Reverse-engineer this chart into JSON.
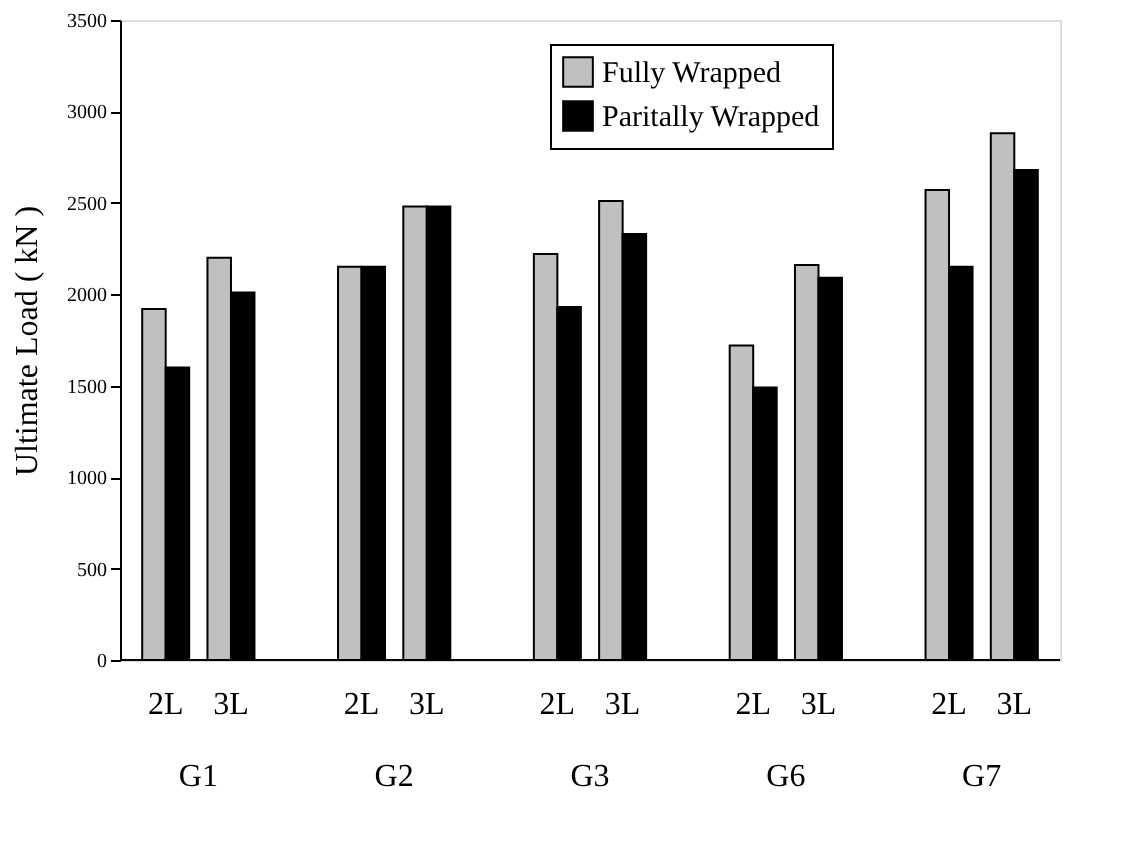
{
  "chart_data": {
    "type": "bar",
    "ylabel": "Ultimate Load ( kN )",
    "categories": [
      "2L",
      "3L",
      "2L",
      "3L",
      "2L",
      "3L",
      "2L",
      "3L",
      "2L",
      "3L"
    ],
    "series": [
      {
        "name": "Fully Wrapped",
        "color": "#c0c0c0",
        "values": [
          1920,
          2200,
          2150,
          2480,
          2220,
          2510,
          1720,
          2160,
          2570,
          2880
        ]
      },
      {
        "name": "Paritally Wrapped",
        "color": "#000000",
        "values": [
          1600,
          2010,
          2150,
          2480,
          1930,
          2330,
          1490,
          2090,
          2150,
          2680
        ]
      }
    ],
    "annotations": [
      "G1",
      "G2",
      "G3",
      "G6",
      "G7"
    ],
    "ylim": [
      0,
      3500
    ],
    "yticks": [
      0,
      500,
      1000,
      1500,
      2000,
      2500,
      3000,
      3500
    ],
    "legend": "top right"
  }
}
